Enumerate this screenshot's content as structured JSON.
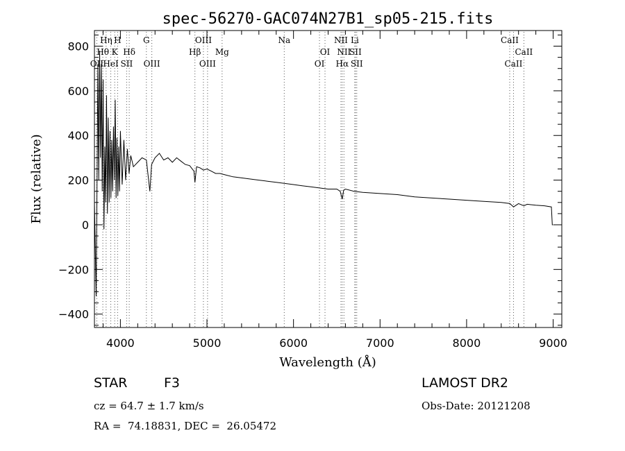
{
  "chart_data": {
    "type": "line",
    "title": "spec-56270-GAC074N27B1_sp05-215.fits",
    "xlabel": "Wavelength (Å)",
    "ylabel": "Flux (relative)",
    "xlim": [
      3700,
      9100
    ],
    "ylim": [
      -460,
      870
    ],
    "x_ticks": [
      4000,
      5000,
      6000,
      7000,
      8000,
      9000
    ],
    "y_ticks": [
      -400,
      -200,
      0,
      200,
      400,
      600,
      800
    ],
    "grid": false,
    "series": [
      {
        "x": [
          3700,
          3720,
          3740,
          3750,
          3760,
          3770,
          3780,
          3790,
          3800,
          3810,
          3820,
          3830,
          3840,
          3850,
          3860,
          3870,
          3880,
          3890,
          3900,
          3910,
          3920,
          3930,
          3940,
          3950,
          3960,
          3970,
          3980,
          3990,
          4000,
          4020,
          4040,
          4060,
          4080,
          4100,
          4120,
          4150,
          4200,
          4250,
          4300,
          4340,
          4360,
          4400,
          4450,
          4500,
          4550,
          4600,
          4650,
          4700,
          4750,
          4800,
          4850,
          4861,
          4880,
          4920,
          4960,
          5000,
          5050,
          5100,
          5150,
          5200,
          5300,
          5400,
          5500,
          5600,
          5700,
          5800,
          5900,
          6000,
          6100,
          6200,
          6300,
          6400,
          6500,
          6540,
          6563,
          6580,
          6600,
          6700,
          6800,
          7000,
          7200,
          7400,
          7600,
          7800,
          8000,
          8200,
          8400,
          8500,
          8542,
          8600,
          8662,
          8700,
          8800,
          8900,
          8980,
          8990,
          9000
        ],
        "y": [
          100,
          -320,
          720,
          200,
          780,
          300,
          720,
          150,
          650,
          -20,
          350,
          100,
          580,
          50,
          480,
          100,
          420,
          120,
          380,
          150,
          440,
          200,
          560,
          120,
          390,
          130,
          350,
          150,
          420,
          180,
          380,
          200,
          340,
          230,
          310,
          260,
          280,
          300,
          290,
          150,
          270,
          300,
          320,
          290,
          300,
          280,
          300,
          285,
          270,
          265,
          240,
          190,
          260,
          255,
          245,
          250,
          240,
          230,
          230,
          225,
          215,
          210,
          205,
          200,
          195,
          190,
          185,
          180,
          175,
          170,
          165,
          160,
          160,
          150,
          115,
          155,
          160,
          150,
          145,
          140,
          135,
          125,
          120,
          115,
          110,
          105,
          100,
          95,
          80,
          95,
          85,
          92,
          88,
          85,
          80,
          0,
          0
        ]
      }
    ],
    "spectral_lines": [
      {
        "label": "Hη",
        "x": 3835,
        "row": 0
      },
      {
        "label": "H",
        "x": 3968,
        "row": 0
      },
      {
        "label": "G",
        "x": 4300,
        "row": 0
      },
      {
        "label": "OIII",
        "x": 4959,
        "row": 0
      },
      {
        "label": "Na",
        "x": 5893,
        "row": 0
      },
      {
        "label": "NII",
        "x": 6548,
        "row": 0
      },
      {
        "label": "Li",
        "x": 6708,
        "row": 0
      },
      {
        "label": "CaII",
        "x": 8498,
        "row": 0
      },
      {
        "label": "Hθ",
        "x": 3797,
        "row": 1
      },
      {
        "label": "K",
        "x": 3934,
        "row": 1
      },
      {
        "label": "Hδ",
        "x": 4102,
        "row": 1
      },
      {
        "label": "Hβ",
        "x": 4861,
        "row": 1
      },
      {
        "label": "Mg",
        "x": 5175,
        "row": 1
      },
      {
        "label": "OI",
        "x": 6364,
        "row": 1
      },
      {
        "label": "NII",
        "x": 6583,
        "row": 1
      },
      {
        "label": "SII",
        "x": 6716,
        "row": 1
      },
      {
        "label": "CaII",
        "x": 8662,
        "row": 1
      },
      {
        "label": "OII",
        "x": 3727,
        "row": 2
      },
      {
        "label": "HeI",
        "x": 3889,
        "row": 2
      },
      {
        "label": "SII",
        "x": 4072,
        "row": 2
      },
      {
        "label": "OIII",
        "x": 4363,
        "row": 2
      },
      {
        "label": "OIII",
        "x": 5007,
        "row": 2
      },
      {
        "label": "OI",
        "x": 6300,
        "row": 2
      },
      {
        "label": "Hα",
        "x": 6563,
        "row": 2
      },
      {
        "label": "SII",
        "x": 6731,
        "row": 2
      },
      {
        "label": "CaII",
        "x": 8542,
        "row": 2
      }
    ]
  },
  "info": {
    "object_class": "STAR",
    "subclass": "F3",
    "redshift": "cz = 64.7 ± 1.7 km/s",
    "coords": "RA =  74.18831, DEC =  26.05472",
    "survey": "LAMOST DR2",
    "obs_date": "Obs-Date: 20121208"
  }
}
